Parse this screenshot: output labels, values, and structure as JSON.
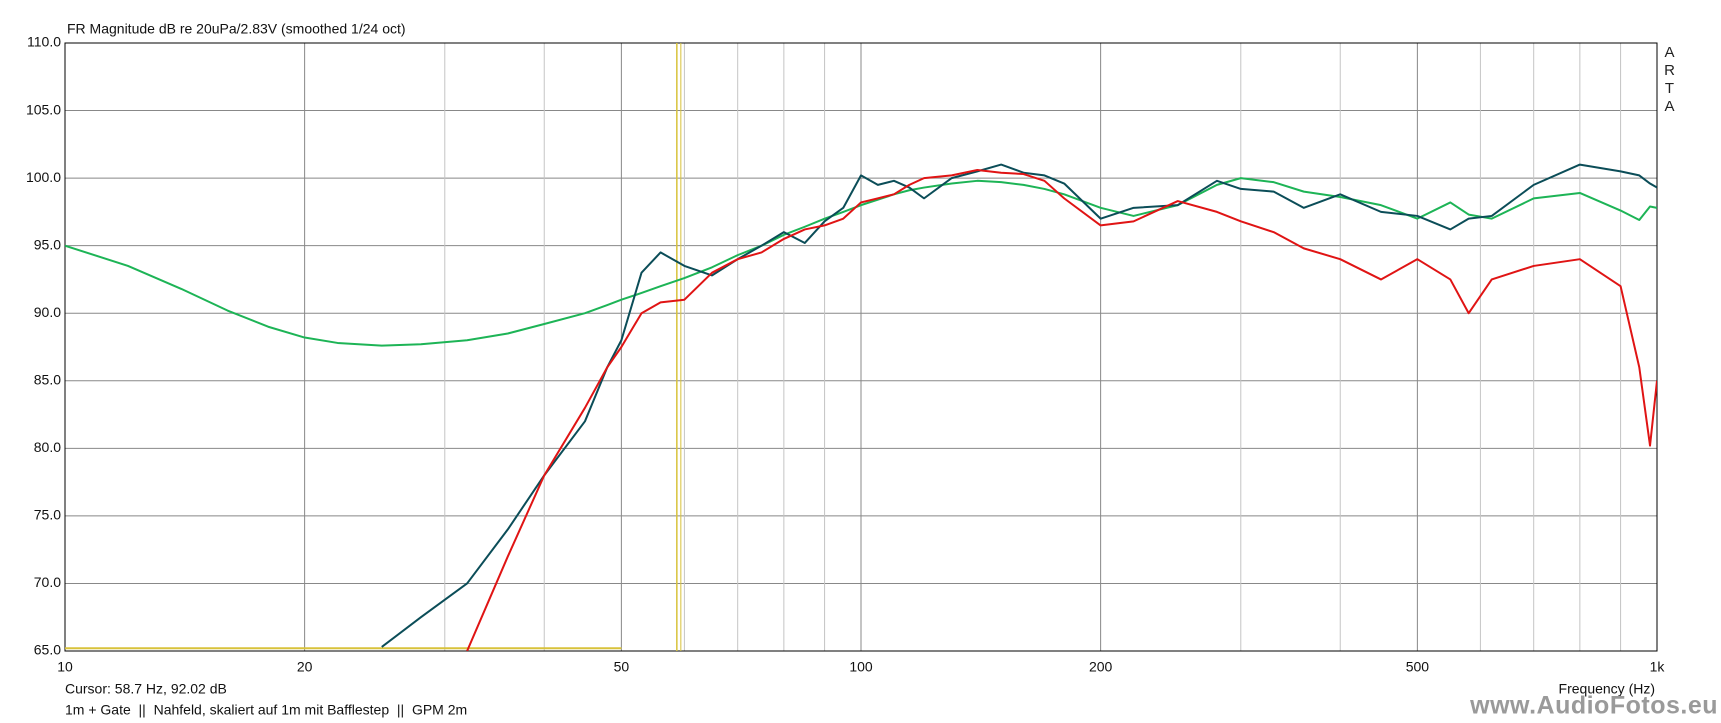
{
  "chart_data": {
    "type": "line",
    "title": "FR Magnitude dB re 20uPa/2.83V (smoothed 1/24 oct)",
    "xlabel": "Frequency (Hz)",
    "cursor_label": "Cursor: 58.7 Hz, 92.02 dB",
    "note": "1m + Gate  ||  Nahfeld, skaliert auf 1m mit Bafflestep  ||  GPM 2m",
    "brand": "ARTA",
    "watermark": "www.AudioFotos.eu",
    "xlog": true,
    "grid": true,
    "xlim": [
      10,
      1000
    ],
    "ylim": [
      65,
      110
    ],
    "xticks": [
      10,
      20,
      50,
      100,
      200,
      500,
      {
        "value": 1000,
        "label": "1k"
      }
    ],
    "xminor": [
      30,
      40,
      60,
      70,
      80,
      90,
      300,
      400,
      600,
      700,
      800,
      900
    ],
    "yticks": [
      {
        "value": 65,
        "label": "65.0"
      },
      {
        "value": 70,
        "label": "70.0"
      },
      {
        "value": 75,
        "label": "75.0"
      },
      {
        "value": 80,
        "label": "80.0"
      },
      {
        "value": 85,
        "label": "85.0"
      },
      {
        "value": 90,
        "label": "90.0"
      },
      {
        "value": 95,
        "label": "95.0"
      },
      {
        "value": 100,
        "label": "100.0"
      },
      {
        "value": 105,
        "label": "105.0"
      },
      {
        "value": 110,
        "label": "110.0"
      }
    ],
    "cursor": {
      "x": 58.7,
      "y": 92.02,
      "color": "#d8c23a"
    },
    "reference_line": {
      "x": [
        10,
        50
      ],
      "y": 65.2,
      "color": "#d8c23a"
    },
    "x": [
      10,
      12,
      14,
      16,
      18,
      20,
      22,
      25,
      28,
      32,
      36,
      40,
      45,
      48,
      50,
      53,
      56,
      60,
      65,
      70,
      75,
      80,
      85,
      90,
      95,
      100,
      105,
      110,
      115,
      120,
      130,
      140,
      150,
      160,
      170,
      180,
      200,
      220,
      250,
      280,
      300,
      330,
      360,
      400,
      450,
      500,
      550,
      580,
      620,
      700,
      800,
      900,
      950,
      980,
      1000
    ],
    "series": [
      {
        "color": "#1db456",
        "values": [
          95.0,
          93.5,
          91.8,
          90.2,
          89.0,
          88.2,
          87.8,
          87.6,
          87.7,
          88.0,
          88.5,
          89.2,
          90.0,
          90.6,
          91.0,
          91.5,
          92.0,
          92.6,
          93.4,
          94.3,
          95.0,
          95.8,
          96.4,
          97.0,
          97.5,
          98.0,
          98.4,
          98.8,
          99.1,
          99.3,
          99.6,
          99.8,
          99.7,
          99.5,
          99.2,
          98.8,
          97.8,
          97.2,
          98.0,
          99.5,
          100.0,
          99.7,
          99.0,
          98.6,
          98.0,
          97.0,
          98.2,
          97.3,
          97.0,
          98.5,
          98.9,
          97.6,
          96.9,
          97.9,
          97.8
        ]
      },
      {
        "color": "#0b4d58",
        "values": [
          null,
          null,
          null,
          null,
          null,
          null,
          null,
          65.3,
          67.5,
          70.0,
          74.0,
          78.0,
          82.0,
          86.0,
          88.0,
          93.0,
          94.5,
          93.5,
          92.8,
          94.0,
          95.0,
          96.0,
          95.2,
          96.8,
          97.8,
          100.2,
          99.5,
          99.8,
          99.3,
          98.5,
          100.0,
          100.5,
          101.0,
          100.4,
          100.2,
          99.6,
          97.0,
          97.8,
          98.0,
          99.8,
          99.2,
          99.0,
          97.8,
          98.8,
          97.5,
          97.2,
          96.2,
          97.0,
          97.2,
          99.5,
          101.0,
          100.5,
          100.2,
          99.6,
          99.3
        ]
      },
      {
        "color": "#e01414",
        "values": [
          null,
          null,
          null,
          null,
          null,
          null,
          null,
          null,
          null,
          65.0,
          72.0,
          78.0,
          83.0,
          86.0,
          87.5,
          90.0,
          90.8,
          91.0,
          93.0,
          94.0,
          94.5,
          95.5,
          96.2,
          96.5,
          97.0,
          98.2,
          98.5,
          98.8,
          99.5,
          100.0,
          100.2,
          100.6,
          100.4,
          100.3,
          99.8,
          98.5,
          96.5,
          96.8,
          98.3,
          97.5,
          96.8,
          96.0,
          94.8,
          94.0,
          92.5,
          94.0,
          92.5,
          90.0,
          92.5,
          93.5,
          94.0,
          92.0,
          86.0,
          80.2,
          85.0
        ]
      }
    ]
  }
}
